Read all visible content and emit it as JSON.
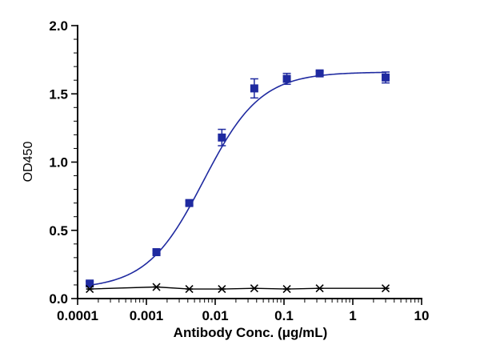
{
  "chart_data": {
    "type": "scatter",
    "title": "",
    "xlabel": "Antibody Conc. (μg/mL)",
    "ylabel": "OD450",
    "xscale": "log",
    "xlim": [
      0.0001,
      10
    ],
    "ylim": [
      0,
      2.0
    ],
    "x_tick_labels": [
      "0.0001",
      "0.001",
      "0.01",
      "0.1",
      "1",
      "10"
    ],
    "x_tick_values": [
      0.0001,
      0.001,
      0.01,
      0.1,
      1,
      10
    ],
    "y_tick_labels": [
      "0.0",
      "0.5",
      "1.0",
      "1.5",
      "2.0"
    ],
    "y_tick_values": [
      0,
      0.5,
      1.0,
      1.5,
      2.0
    ],
    "grid": false,
    "legend": "none",
    "series": [
      {
        "marker": "square",
        "color": "#1f2aa0",
        "fit": "4PL",
        "fit_params": {
          "bottom": 0.07,
          "top": 1.66,
          "ec50": 0.0068,
          "hill": 1.05
        },
        "points": [
          {
            "x": 0.00015,
            "y": 0.11,
            "err": 0.015
          },
          {
            "x": 0.0014,
            "y": 0.34,
            "err": 0.01
          },
          {
            "x": 0.0042,
            "y": 0.7,
            "err": 0.015
          },
          {
            "x": 0.0125,
            "y": 1.18,
            "err": 0.06
          },
          {
            "x": 0.037,
            "y": 1.54,
            "err": 0.07
          },
          {
            "x": 0.11,
            "y": 1.61,
            "err": 0.04
          },
          {
            "x": 0.33,
            "y": 1.65,
            "err": 0.015
          },
          {
            "x": 3.0,
            "y": 1.62,
            "err": 0.04
          }
        ]
      },
      {
        "marker": "asterisk",
        "color": "#000000",
        "fit": "line",
        "points": [
          {
            "x": 0.00015,
            "y": 0.07
          },
          {
            "x": 0.0014,
            "y": 0.085
          },
          {
            "x": 0.0042,
            "y": 0.07
          },
          {
            "x": 0.0125,
            "y": 0.07
          },
          {
            "x": 0.037,
            "y": 0.075
          },
          {
            "x": 0.11,
            "y": 0.07
          },
          {
            "x": 0.33,
            "y": 0.075
          },
          {
            "x": 3.0,
            "y": 0.075
          }
        ]
      }
    ]
  }
}
